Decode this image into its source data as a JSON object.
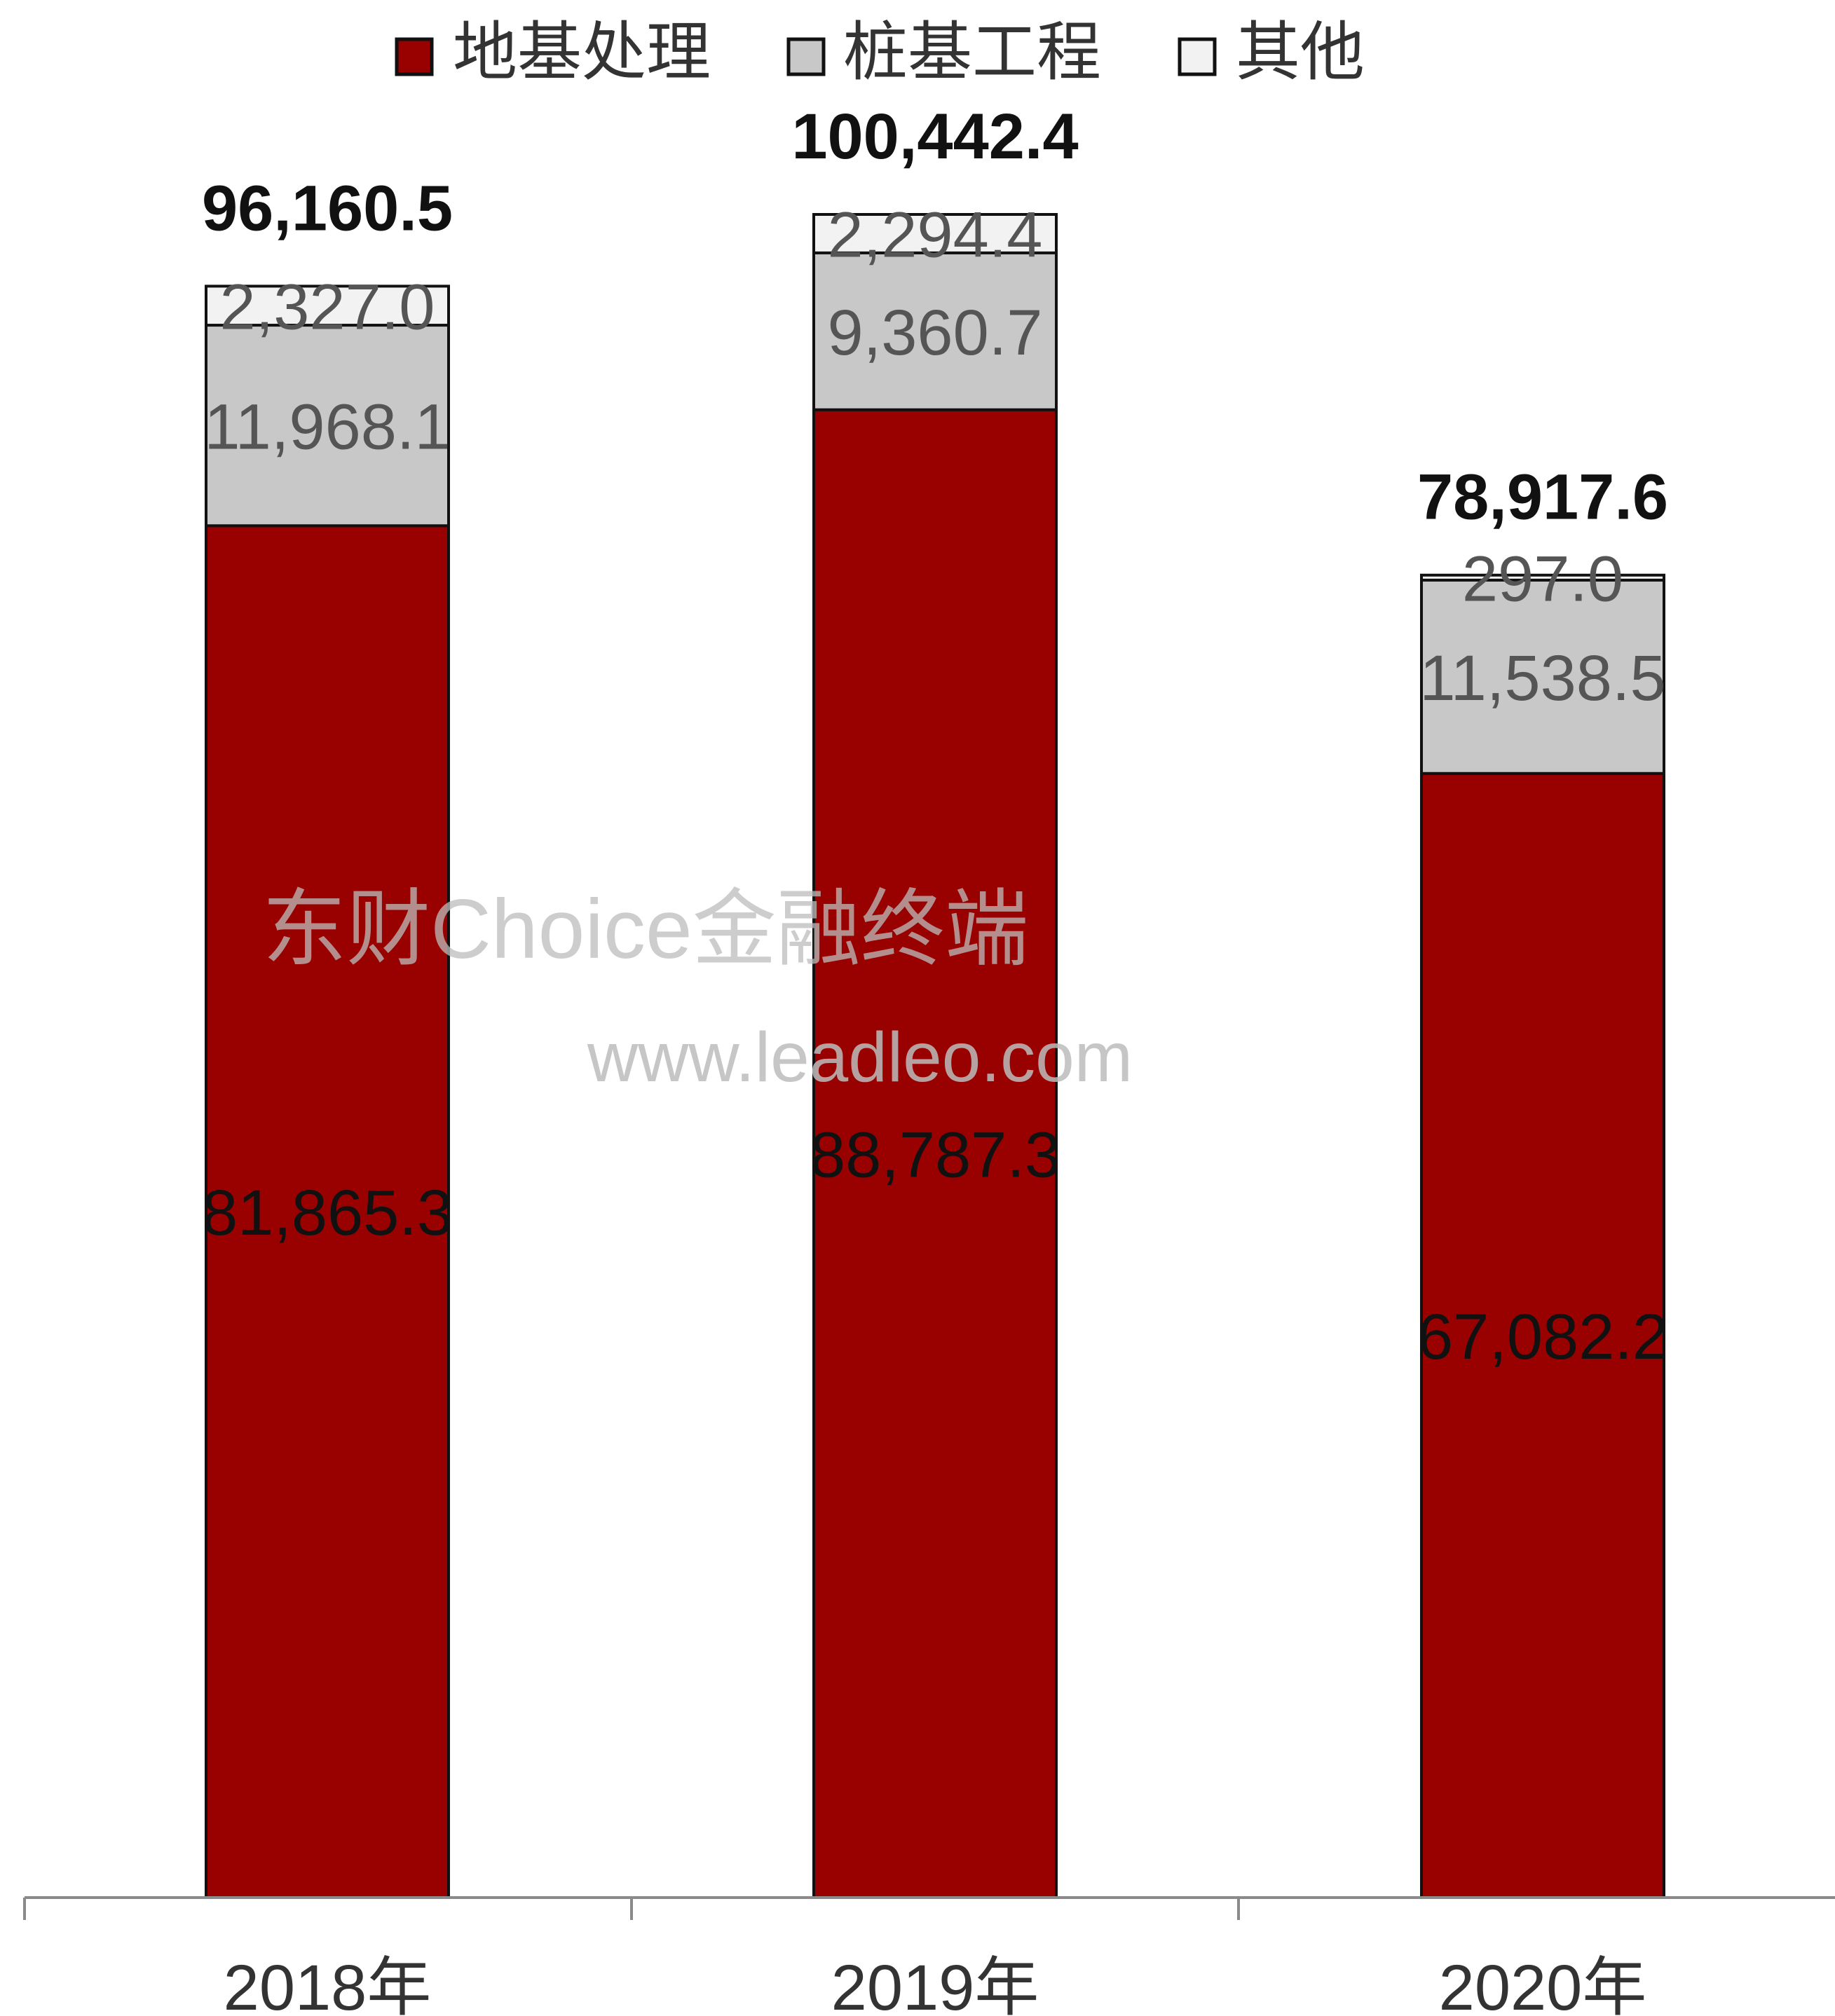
{
  "chart_data": {
    "type": "bar",
    "stacked": true,
    "categories": [
      "2018年",
      "2019年",
      "2020年"
    ],
    "series": [
      {
        "name": "地基处理",
        "values": [
          81865.3,
          88787.3,
          67082.2
        ],
        "labels": [
          "81,865.3",
          "88,787.3",
          "67,082.2"
        ],
        "color": "#990000",
        "label_color": "#111111"
      },
      {
        "name": "桩基工程",
        "values": [
          11968.1,
          9360.7,
          11538.5
        ],
        "labels": [
          "11,968.1",
          "9,360.7",
          "11,538.5"
        ],
        "color": "#c8c8c8",
        "label_color": "#555555"
      },
      {
        "name": "其他",
        "values": [
          2327.0,
          2294.4,
          297.0
        ],
        "labels": [
          "2,327.0",
          "2,294.4",
          "297.0"
        ],
        "color": "#f2f2f2",
        "label_color": "#555555"
      }
    ],
    "totals": [
      96160.5,
      100442.4,
      78917.6
    ],
    "total_labels": [
      "96,160.5",
      "100,442.4",
      "78,917.6"
    ],
    "ylim": [
      0,
      100442.4
    ],
    "legend_position": "top-center",
    "grid": false
  },
  "watermark": {
    "line1": "东财Choice金融终端",
    "line2": "www.leadleo.com"
  }
}
